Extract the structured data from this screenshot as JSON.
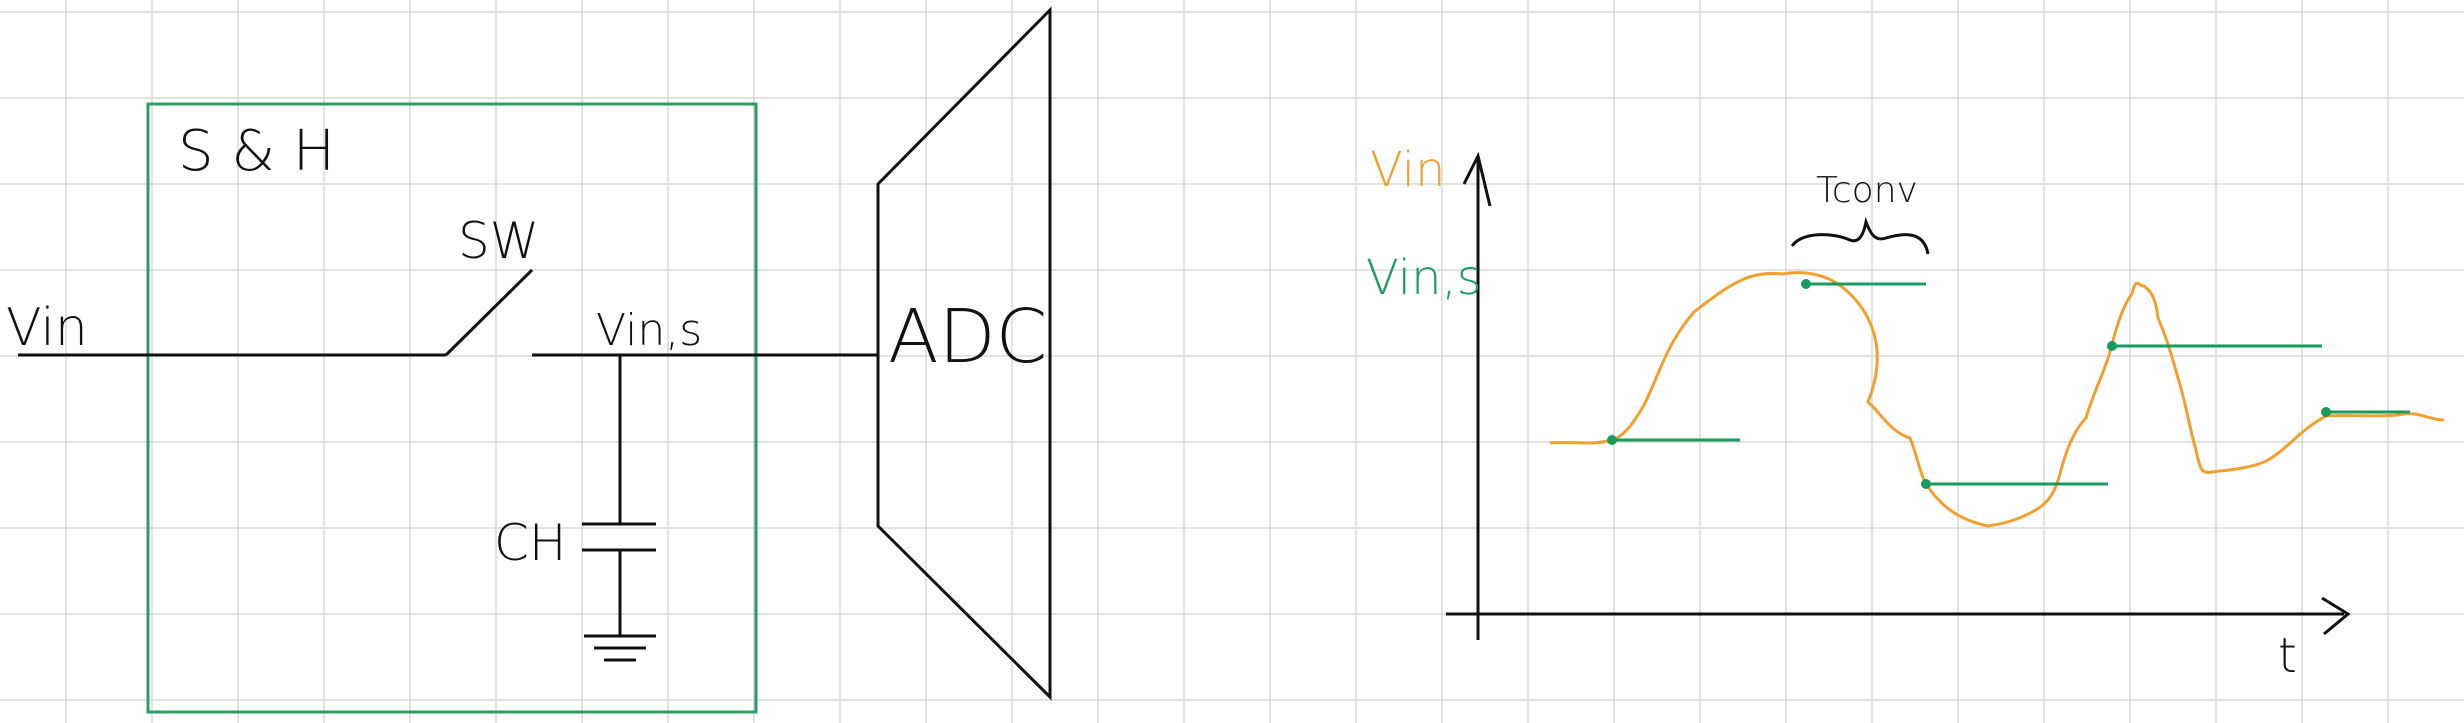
{
  "colors": {
    "grid": "#d8d8d8",
    "ink": "#111111",
    "box": "#2e9c63",
    "vin": "#f0a030",
    "vins": "#1a9a5c"
  },
  "circuit": {
    "block_label": "S & H",
    "input_label": "Vin",
    "switch_label": "SW",
    "node_label": "Vin,s",
    "cap_label": "CH",
    "adc_label": "ADC"
  },
  "plot": {
    "legend_vin": "Vin",
    "legend_vins": "Vin,s",
    "tconv_label": "Tconv",
    "time_label": "t"
  }
}
